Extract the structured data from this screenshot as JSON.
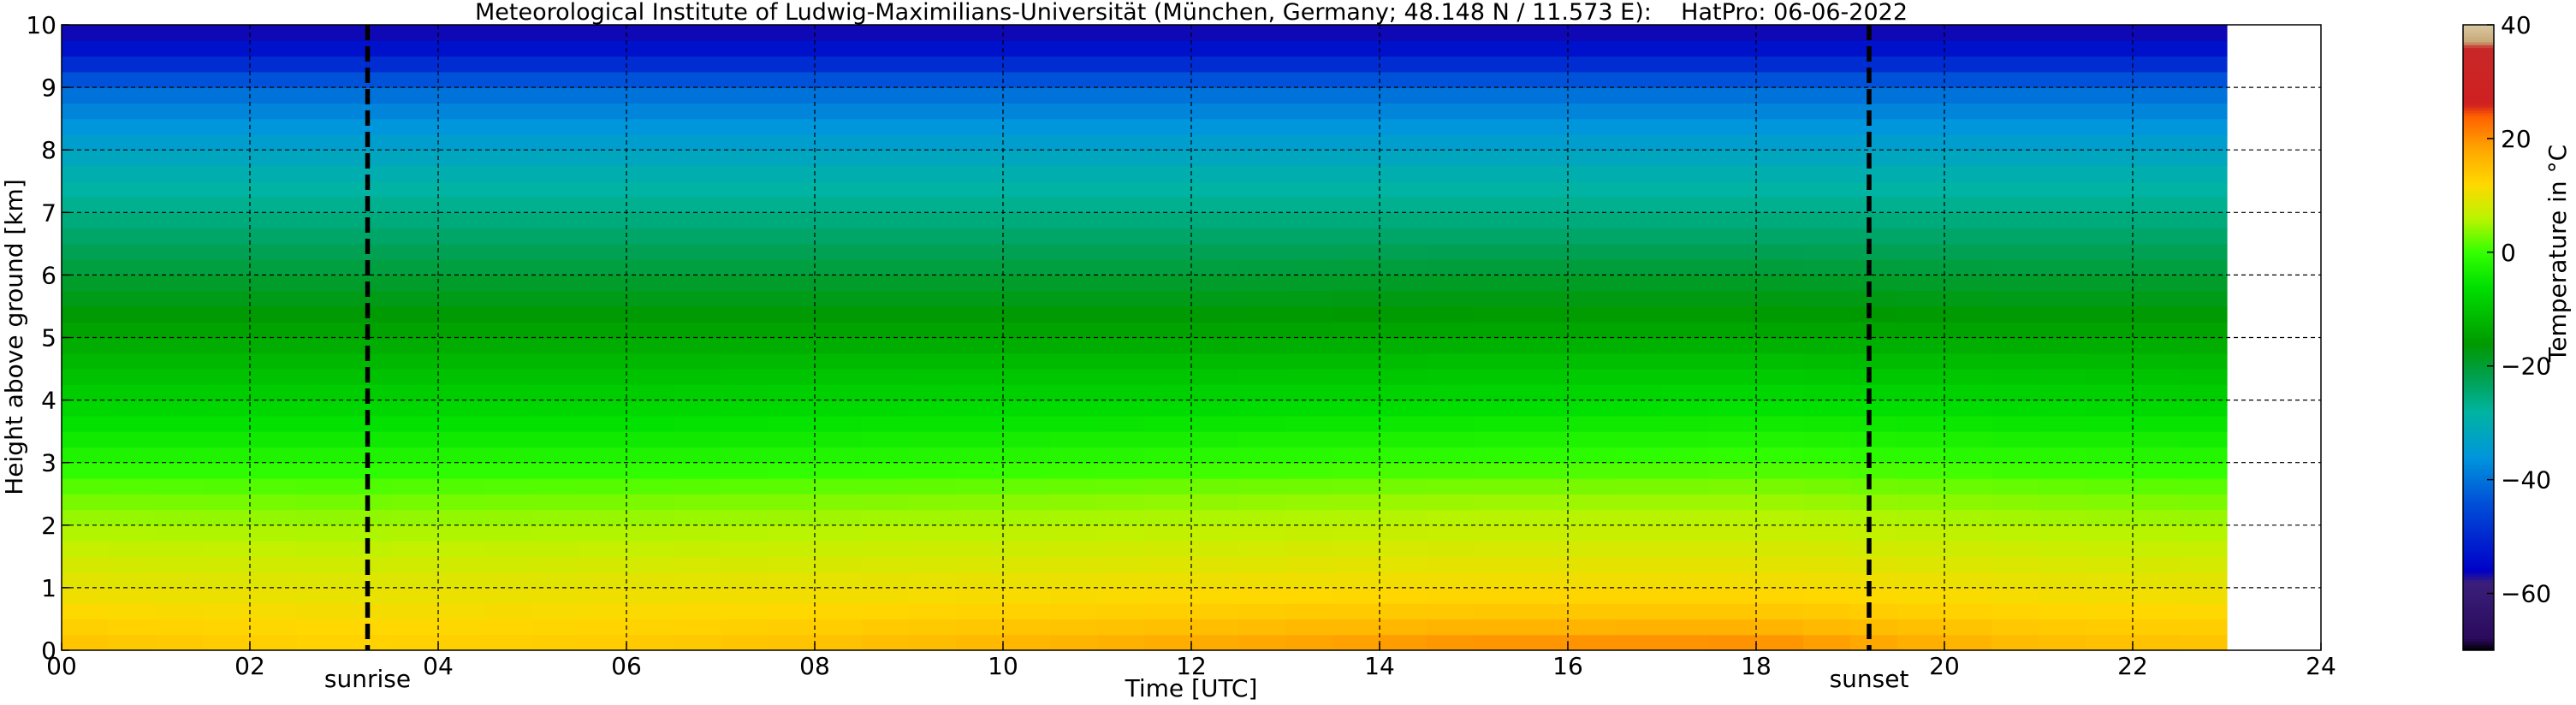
{
  "chart_data": {
    "type": "heatmap",
    "title": "Meteorological Institute of Ludwig-Maximilians-Universität (München, Germany; 48.148 N / 11.573 E):    HatPro: 06-06-2022",
    "xlabel": "Time [UTC]",
    "ylabel": "Height above ground [km]",
    "xlim": [
      0,
      24
    ],
    "ylim": [
      0,
      10
    ],
    "x_ticks": [
      "00",
      "02",
      "04",
      "06",
      "08",
      "10",
      "12",
      "14",
      "16",
      "18",
      "20",
      "22",
      "24"
    ],
    "y_ticks": [
      "0",
      "1",
      "2",
      "3",
      "4",
      "5",
      "6",
      "7",
      "8",
      "9",
      "10"
    ],
    "grid": true,
    "data_extent_hours": [
      0,
      23
    ],
    "events": [
      {
        "label": "sunrise",
        "time_utc": 3.25
      },
      {
        "label": "sunset",
        "time_utc": 19.2
      }
    ],
    "colorbar": {
      "label": "Temperature in °C",
      "range": [
        -70,
        40
      ],
      "ticks": [
        "40",
        "20",
        "0",
        "−20",
        "−40",
        "−60"
      ],
      "levels": [
        {
          "t": -70,
          "color": "#000000"
        },
        {
          "t": -68,
          "color": "#2a0a5c"
        },
        {
          "t": -58,
          "color": "#3a1e7a"
        },
        {
          "t": -56,
          "color": "#0000c8"
        },
        {
          "t": -44,
          "color": "#0050d8"
        },
        {
          "t": -36,
          "color": "#0096dc"
        },
        {
          "t": -28,
          "color": "#00b4a0"
        },
        {
          "t": -22,
          "color": "#00a050"
        },
        {
          "t": -16,
          "color": "#009a00"
        },
        {
          "t": -6,
          "color": "#00e000"
        },
        {
          "t": 0,
          "color": "#33ff00"
        },
        {
          "t": 6,
          "color": "#bbf400"
        },
        {
          "t": 12,
          "color": "#ffd800"
        },
        {
          "t": 18,
          "color": "#ffa800"
        },
        {
          "t": 24,
          "color": "#ff6000"
        },
        {
          "t": 26,
          "color": "#d02020"
        },
        {
          "t": 36,
          "color": "#c82828"
        },
        {
          "t": 37,
          "color": "#c8a878"
        },
        {
          "t": 40,
          "color": "#d8c8a0"
        }
      ]
    },
    "temperature_profile_c": {
      "heights_km": [
        0,
        0.5,
        1,
        1.5,
        2,
        2.5,
        3,
        3.5,
        4,
        4.5,
        5,
        5.5,
        6,
        6.5,
        7,
        7.5,
        8,
        8.5,
        9,
        9.5,
        10
      ],
      "times_utc": [
        0,
        3,
        6,
        9,
        12,
        15,
        18,
        21,
        23
      ],
      "values": [
        [
          15,
          12.5,
          10,
          7.5,
          5,
          2.5,
          -1.5,
          -5,
          -8,
          -11,
          -14,
          -17,
          -20,
          -23,
          -26,
          -29,
          -33,
          -37,
          -41,
          -52,
          -58
        ],
        [
          13,
          11.5,
          9.5,
          7.2,
          4.8,
          2.2,
          -1.5,
          -5,
          -8,
          -11,
          -14,
          -17,
          -20,
          -23,
          -26,
          -29,
          -33,
          -37,
          -41,
          -52,
          -58
        ],
        [
          14,
          12,
          10,
          7.5,
          5,
          2.5,
          -1.5,
          -5,
          -8,
          -11,
          -14,
          -17,
          -20,
          -23,
          -26,
          -29,
          -33,
          -37,
          -41,
          -52,
          -58
        ],
        [
          16,
          13,
          10.5,
          8,
          5.5,
          3,
          -1,
          -4.5,
          -7.5,
          -10.5,
          -14,
          -17,
          -20,
          -23,
          -26,
          -29,
          -33,
          -37,
          -41,
          -52,
          -58
        ],
        [
          18.5,
          14,
          11,
          8.5,
          6,
          3.5,
          -0.5,
          -4,
          -7.5,
          -10.5,
          -14,
          -17,
          -20,
          -23,
          -26,
          -29,
          -33,
          -37,
          -41,
          -52,
          -58
        ],
        [
          21,
          15,
          11.5,
          9,
          6.5,
          4,
          0,
          -3.5,
          -7,
          -10,
          -13.5,
          -16.5,
          -19.5,
          -23,
          -26,
          -29,
          -33,
          -37,
          -41,
          -52,
          -58
        ],
        [
          21.5,
          15,
          11.5,
          9,
          6.5,
          4,
          0.5,
          -3,
          -6.5,
          -10,
          -13.5,
          -16.5,
          -19.5,
          -23,
          -26,
          -29,
          -33,
          -37,
          -41,
          -52,
          -58
        ],
        [
          16,
          13,
          10.5,
          8,
          5.5,
          3,
          -0.5,
          -4,
          -7.5,
          -10.5,
          -14,
          -17,
          -20,
          -23,
          -26,
          -29,
          -33,
          -37,
          -41,
          -52,
          -58
        ],
        [
          15,
          12.5,
          10,
          7.5,
          5,
          2.5,
          -1,
          -4.5,
          -8,
          -11,
          -14,
          -17,
          -20,
          -23,
          -26,
          -29,
          -33,
          -37,
          -41,
          -52,
          -58
        ]
      ]
    }
  }
}
